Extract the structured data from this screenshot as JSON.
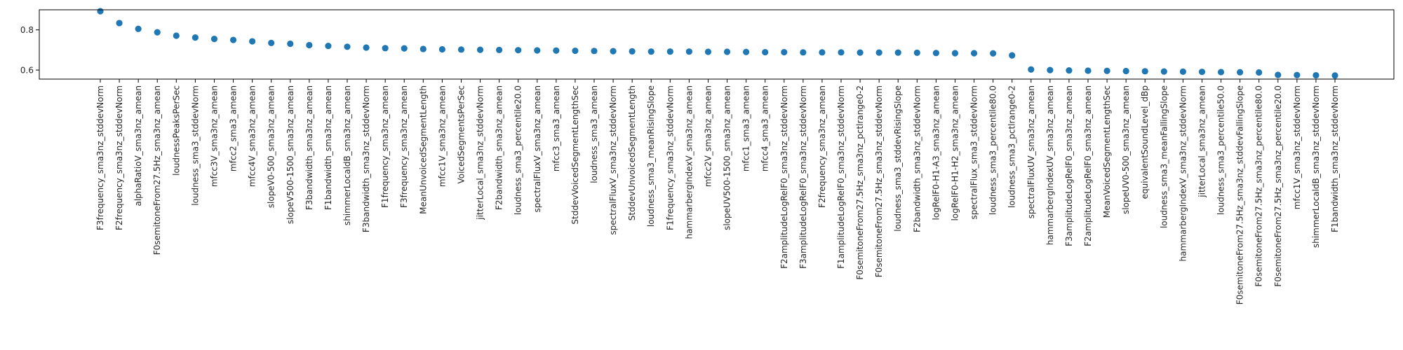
{
  "chart_data": {
    "type": "scatter",
    "title": "",
    "xlabel": "",
    "ylabel": "",
    "ylim": [
      0.555,
      0.9
    ],
    "yticks": [
      0.6,
      0.8
    ],
    "grid": false,
    "legend": "none",
    "marker_color": "#1f77b4",
    "categories": [
      "F3frequency_sma3nz_stddevNorm",
      "F2frequency_sma3nz_stddevNorm",
      "alphaRatioV_sma3nz_amean",
      "F0semitoneFrom27.5Hz_sma3nz_amean",
      "loudnessPeaksPerSec",
      "loudness_sma3_stddevNorm",
      "mfcc3V_sma3nz_amean",
      "mfcc2_sma3_amean",
      "mfcc4V_sma3nz_amean",
      "slopeV0-500_sma3nz_amean",
      "slopeV500-1500_sma3nz_amean",
      "F3bandwidth_sma3nz_amean",
      "F1bandwidth_sma3nz_amean",
      "shimmerLocaldB_sma3nz_amean",
      "F3bandwidth_sma3nz_stddevNorm",
      "F1frequency_sma3nz_amean",
      "F3frequency_sma3nz_amean",
      "MeanUnvoicedSegmentLength",
      "mfcc1V_sma3nz_amean",
      "VoicedSegmentsPerSec",
      "jitterLocal_sma3nz_stddevNorm",
      "F2bandwidth_sma3nz_amean",
      "loudness_sma3_percentile20.0",
      "spectralFluxV_sma3nz_amean",
      "mfcc3_sma3_amean",
      "StddevVoicedSegmentLengthSec",
      "loudness_sma3_amean",
      "spectralFluxV_sma3nz_stddevNorm",
      "StddevUnvoicedSegmentLength",
      "loudness_sma3_meanRisingSlope",
      "F1frequency_sma3nz_stddevNorm",
      "hammarbergIndexV_sma3nz_amean",
      "mfcc2V_sma3nz_amean",
      "slopeUV500-1500_sma3nz_amean",
      "mfcc1_sma3_amean",
      "mfcc4_sma3_amean",
      "F2amplitudeLogRelF0_sma3nz_stddevNorm",
      "F3amplitudeLogRelF0_sma3nz_stddevNorm",
      "F2frequency_sma3nz_amean",
      "F1amplitudeLogRelF0_sma3nz_stddevNorm",
      "F0semitoneFrom27.5Hz_sma3nz_pctlrange0-2",
      "F0semitoneFrom27.5Hz_sma3nz_stddevNorm",
      "loudness_sma3_stddevRisingSlope",
      "F2bandwidth_sma3nz_stddevNorm",
      "logRelF0-H1-A3_sma3nz_amean",
      "logRelF0-H1-H2_sma3nz_amean",
      "spectralFlux_sma3_stddevNorm",
      "loudness_sma3_percentile80.0",
      "loudness_sma3_pctlrange0-2",
      "spectralFluxUV_sma3nz_amean",
      "hammarbergIndexUV_sma3nz_amean",
      "F3amplitudeLogRelF0_sma3nz_amean",
      "F2amplitudeLogRelF0_sma3nz_amean",
      "MeanVoicedSegmentLengthSec",
      "slopeUV0-500_sma3nz_amean",
      "equivalentSoundLevel_dBp",
      "loudness_sma3_meanFallingSlope",
      "hammarbergIndexV_sma3nz_stddevNorm",
      "jitterLocal_sma3nz_amean",
      "loudness_sma3_percentile50.0",
      "F0semitoneFrom27.5Hz_sma3nz_stddevFallingSlope",
      "F0semitoneFrom27.5Hz_sma3nz_percentile80.0",
      "F0semitoneFrom27.5Hz_sma3nz_percentile20.0",
      "mfcc1V_sma3nz_stddevNorm",
      "shimmerLocaldB_sma3nz_stddevNorm",
      "F1bandwidth_sma3nz_stddevNorm"
    ],
    "values": [
      0.893,
      0.834,
      0.805,
      0.788,
      0.771,
      0.762,
      0.755,
      0.75,
      0.743,
      0.735,
      0.731,
      0.724,
      0.72,
      0.716,
      0.712,
      0.709,
      0.708,
      0.705,
      0.703,
      0.702,
      0.701,
      0.7,
      0.699,
      0.698,
      0.697,
      0.696,
      0.695,
      0.694,
      0.693,
      0.692,
      0.692,
      0.692,
      0.691,
      0.691,
      0.69,
      0.689,
      0.689,
      0.688,
      0.688,
      0.688,
      0.687,
      0.687,
      0.687,
      0.686,
      0.685,
      0.684,
      0.684,
      0.683,
      0.673,
      0.603,
      0.6,
      0.598,
      0.597,
      0.596,
      0.595,
      0.594,
      0.593,
      0.592,
      0.591,
      0.59,
      0.589,
      0.588,
      0.576,
      0.575,
      0.574,
      0.573
    ]
  }
}
